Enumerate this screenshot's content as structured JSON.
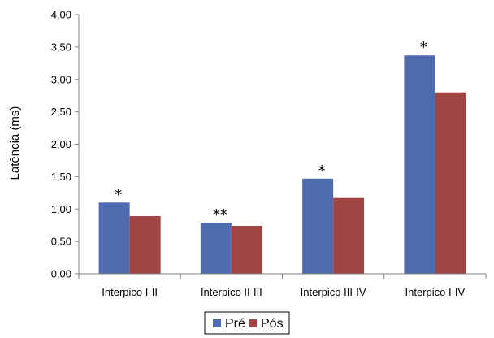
{
  "chart_data": {
    "type": "bar",
    "title": "",
    "xlabel": "",
    "ylabel": "Latência (ms)",
    "ylim": [
      0,
      4
    ],
    "yticks": [
      "0,00",
      "0,50",
      "1,00",
      "1,50",
      "2,00",
      "2,50",
      "3,00",
      "3,50",
      "4,00"
    ],
    "ytick_values": [
      0,
      0.5,
      1,
      1.5,
      2,
      2.5,
      3,
      3.5,
      4
    ],
    "categories": [
      "Interpico I-II",
      "Interpico II-III",
      "Interpico III-IV",
      "Interpico I-IV"
    ],
    "series": [
      {
        "name": "Pré",
        "color": "#4f6bb0",
        "values": [
          1.1,
          0.79,
          1.47,
          3.37
        ]
      },
      {
        "name": "Pós",
        "color": "#a04444",
        "values": [
          0.89,
          0.74,
          1.17,
          2.8
        ]
      }
    ],
    "annotations": [
      "*",
      "**",
      "*",
      "*"
    ],
    "grid": false,
    "legend_position": "bottom"
  }
}
